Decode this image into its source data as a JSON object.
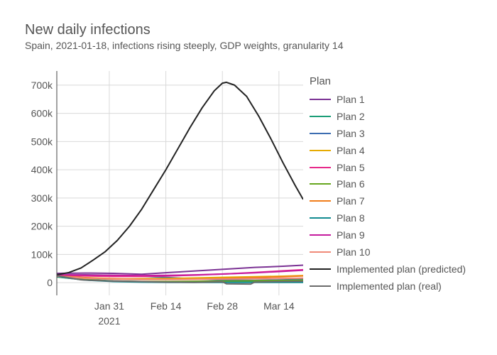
{
  "chart_data": {
    "type": "line",
    "title": "New daily infections",
    "subtitle": "Spain, 2021-01-18, infections rising steeply, GDP weights, granularity 14",
    "xlabel": "",
    "ylabel": "",
    "x_range": [
      "2021-01-18",
      "2021-03-20"
    ],
    "y_range": [
      -45000,
      750000
    ],
    "x_ticks": [
      {
        "date": "2021-01-31",
        "label": "Jan 31",
        "sublabel": "2021"
      },
      {
        "date": "2021-02-14",
        "label": "Feb 14",
        "sublabel": ""
      },
      {
        "date": "2021-02-28",
        "label": "Feb 28",
        "sublabel": ""
      },
      {
        "date": "2021-03-14",
        "label": "Mar 14",
        "sublabel": ""
      }
    ],
    "y_ticks": [
      {
        "value": 0,
        "label": "0"
      },
      {
        "value": 100000,
        "label": "100k"
      },
      {
        "value": 200000,
        "label": "200k"
      },
      {
        "value": 300000,
        "label": "300k"
      },
      {
        "value": 400000,
        "label": "400k"
      },
      {
        "value": 500000,
        "label": "500k"
      },
      {
        "value": 600000,
        "label": "600k"
      },
      {
        "value": 700000,
        "label": "700k"
      }
    ],
    "grid": true,
    "legend": {
      "title": "Plan",
      "position": "right"
    },
    "series": [
      {
        "name": "Plan 1",
        "color": "#7b3294",
        "points": [
          [
            "2021-01-18",
            33000
          ],
          [
            "2021-01-25",
            34000
          ],
          [
            "2021-02-01",
            33000
          ],
          [
            "2021-02-08",
            30000
          ],
          [
            "2021-02-15",
            36000
          ],
          [
            "2021-02-22",
            42000
          ],
          [
            "2021-03-01",
            48000
          ],
          [
            "2021-03-08",
            54000
          ],
          [
            "2021-03-15",
            58000
          ],
          [
            "2021-03-20",
            62000
          ]
        ]
      },
      {
        "name": "Plan 2",
        "color": "#1b9e77",
        "points": [
          [
            "2021-01-18",
            25000
          ],
          [
            "2021-01-25",
            12000
          ],
          [
            "2021-02-01",
            6000
          ],
          [
            "2021-02-08",
            4000
          ],
          [
            "2021-02-15",
            3000
          ],
          [
            "2021-02-22",
            3000
          ],
          [
            "2021-03-01",
            3000
          ],
          [
            "2021-03-08",
            3000
          ],
          [
            "2021-03-15",
            3000
          ],
          [
            "2021-03-20",
            3000
          ]
        ]
      },
      {
        "name": "Plan 3",
        "color": "#3c6db1",
        "points": [
          [
            "2021-01-18",
            27000
          ],
          [
            "2021-01-25",
            28000
          ],
          [
            "2021-02-01",
            26000
          ],
          [
            "2021-02-08",
            23000
          ],
          [
            "2021-02-15",
            18000
          ],
          [
            "2021-02-22",
            13000
          ],
          [
            "2021-03-01",
            9000
          ],
          [
            "2021-03-08",
            8000
          ],
          [
            "2021-03-15",
            10000
          ],
          [
            "2021-03-20",
            12000
          ]
        ]
      },
      {
        "name": "Plan 4",
        "color": "#e6ab02",
        "points": [
          [
            "2021-01-18",
            22000
          ],
          [
            "2021-01-25",
            15000
          ],
          [
            "2021-02-01",
            13000
          ],
          [
            "2021-02-08",
            14000
          ],
          [
            "2021-02-15",
            15000
          ],
          [
            "2021-02-22",
            17000
          ],
          [
            "2021-03-01",
            19000
          ],
          [
            "2021-03-08",
            21000
          ],
          [
            "2021-03-15",
            23000
          ],
          [
            "2021-03-20",
            25000
          ]
        ]
      },
      {
        "name": "Plan 5",
        "color": "#e7298a",
        "points": [
          [
            "2021-01-18",
            26000
          ],
          [
            "2021-01-25",
            24000
          ],
          [
            "2021-02-01",
            22000
          ],
          [
            "2021-02-08",
            22000
          ],
          [
            "2021-02-15",
            24000
          ],
          [
            "2021-02-22",
            27000
          ],
          [
            "2021-03-01",
            31000
          ],
          [
            "2021-03-08",
            36000
          ],
          [
            "2021-03-15",
            42000
          ],
          [
            "2021-03-20",
            46000
          ]
        ]
      },
      {
        "name": "Plan 6",
        "color": "#66a61e",
        "points": [
          [
            "2021-01-18",
            20000
          ],
          [
            "2021-01-25",
            10000
          ],
          [
            "2021-02-01",
            5000
          ],
          [
            "2021-02-08",
            4000
          ],
          [
            "2021-02-15",
            4000
          ],
          [
            "2021-02-22",
            5000
          ],
          [
            "2021-03-01",
            6000
          ],
          [
            "2021-03-08",
            7000
          ],
          [
            "2021-03-15",
            8000
          ],
          [
            "2021-03-20",
            9000
          ]
        ]
      },
      {
        "name": "Plan 7",
        "color": "#f07d1a",
        "points": [
          [
            "2021-01-18",
            24000
          ],
          [
            "2021-01-25",
            18000
          ],
          [
            "2021-02-01",
            14000
          ],
          [
            "2021-02-08",
            12000
          ],
          [
            "2021-02-15",
            12000
          ],
          [
            "2021-02-22",
            13000
          ],
          [
            "2021-03-01",
            15000
          ],
          [
            "2021-03-08",
            18000
          ],
          [
            "2021-03-15",
            21000
          ],
          [
            "2021-03-20",
            24000
          ]
        ]
      },
      {
        "name": "Plan 8",
        "color": "#128b91",
        "points": [
          [
            "2021-01-18",
            21000
          ],
          [
            "2021-01-25",
            9000
          ],
          [
            "2021-02-01",
            4000
          ],
          [
            "2021-02-08",
            2000
          ],
          [
            "2021-02-15",
            1000
          ],
          [
            "2021-02-22",
            1000
          ],
          [
            "2021-03-01",
            1000
          ],
          [
            "2021-03-08",
            1000
          ],
          [
            "2021-03-15",
            1000
          ],
          [
            "2021-03-20",
            1000
          ]
        ]
      },
      {
        "name": "Plan 9",
        "color": "#c51b9d",
        "points": [
          [
            "2021-01-18",
            28000
          ],
          [
            "2021-01-25",
            27000
          ],
          [
            "2021-02-01",
            26000
          ],
          [
            "2021-02-08",
            25000
          ],
          [
            "2021-02-15",
            26000
          ],
          [
            "2021-02-22",
            28000
          ],
          [
            "2021-03-01",
            31000
          ],
          [
            "2021-03-08",
            35000
          ],
          [
            "2021-03-15",
            40000
          ],
          [
            "2021-03-20",
            44000
          ]
        ]
      },
      {
        "name": "Plan 10",
        "color": "#f08a78",
        "points": [
          [
            "2021-01-18",
            23000
          ],
          [
            "2021-01-25",
            16000
          ],
          [
            "2021-02-01",
            12000
          ],
          [
            "2021-02-08",
            11000
          ],
          [
            "2021-02-15",
            11000
          ],
          [
            "2021-02-22",
            12000
          ],
          [
            "2021-03-01",
            13000
          ],
          [
            "2021-03-08",
            14000
          ],
          [
            "2021-03-15",
            15000
          ],
          [
            "2021-03-20",
            16000
          ]
        ]
      },
      {
        "name": "Implemented plan (predicted)",
        "color": "#222222",
        "points": [
          [
            "2021-01-18",
            28000
          ],
          [
            "2021-01-21",
            36000
          ],
          [
            "2021-01-24",
            52000
          ],
          [
            "2021-01-27",
            80000
          ],
          [
            "2021-01-30",
            110000
          ],
          [
            "2021-02-02",
            150000
          ],
          [
            "2021-02-05",
            200000
          ],
          [
            "2021-02-08",
            260000
          ],
          [
            "2021-02-11",
            330000
          ],
          [
            "2021-02-14",
            400000
          ],
          [
            "2021-02-17",
            475000
          ],
          [
            "2021-02-20",
            550000
          ],
          [
            "2021-02-23",
            620000
          ],
          [
            "2021-02-26",
            680000
          ],
          [
            "2021-02-28",
            707000
          ],
          [
            "2021-03-01",
            710000
          ],
          [
            "2021-03-03",
            700000
          ],
          [
            "2021-03-06",
            660000
          ],
          [
            "2021-03-09",
            590000
          ],
          [
            "2021-03-12",
            510000
          ],
          [
            "2021-03-15",
            425000
          ],
          [
            "2021-03-18",
            345000
          ],
          [
            "2021-03-20",
            295000
          ]
        ]
      },
      {
        "name": "Implemented plan (real)",
        "color": "#6b6b6b",
        "points": [
          [
            "2021-01-18",
            25000
          ],
          [
            "2021-01-24",
            10000
          ],
          [
            "2021-01-31",
            6000
          ],
          [
            "2021-02-07",
            4000
          ],
          [
            "2021-02-14",
            2000
          ],
          [
            "2021-02-21",
            1000
          ],
          [
            "2021-02-28",
            3000
          ],
          [
            "2021-03-01",
            -4000
          ],
          [
            "2021-03-07",
            -5000
          ],
          [
            "2021-03-08",
            2000
          ],
          [
            "2021-03-14",
            4000
          ],
          [
            "2021-03-20",
            5000
          ]
        ]
      }
    ]
  }
}
